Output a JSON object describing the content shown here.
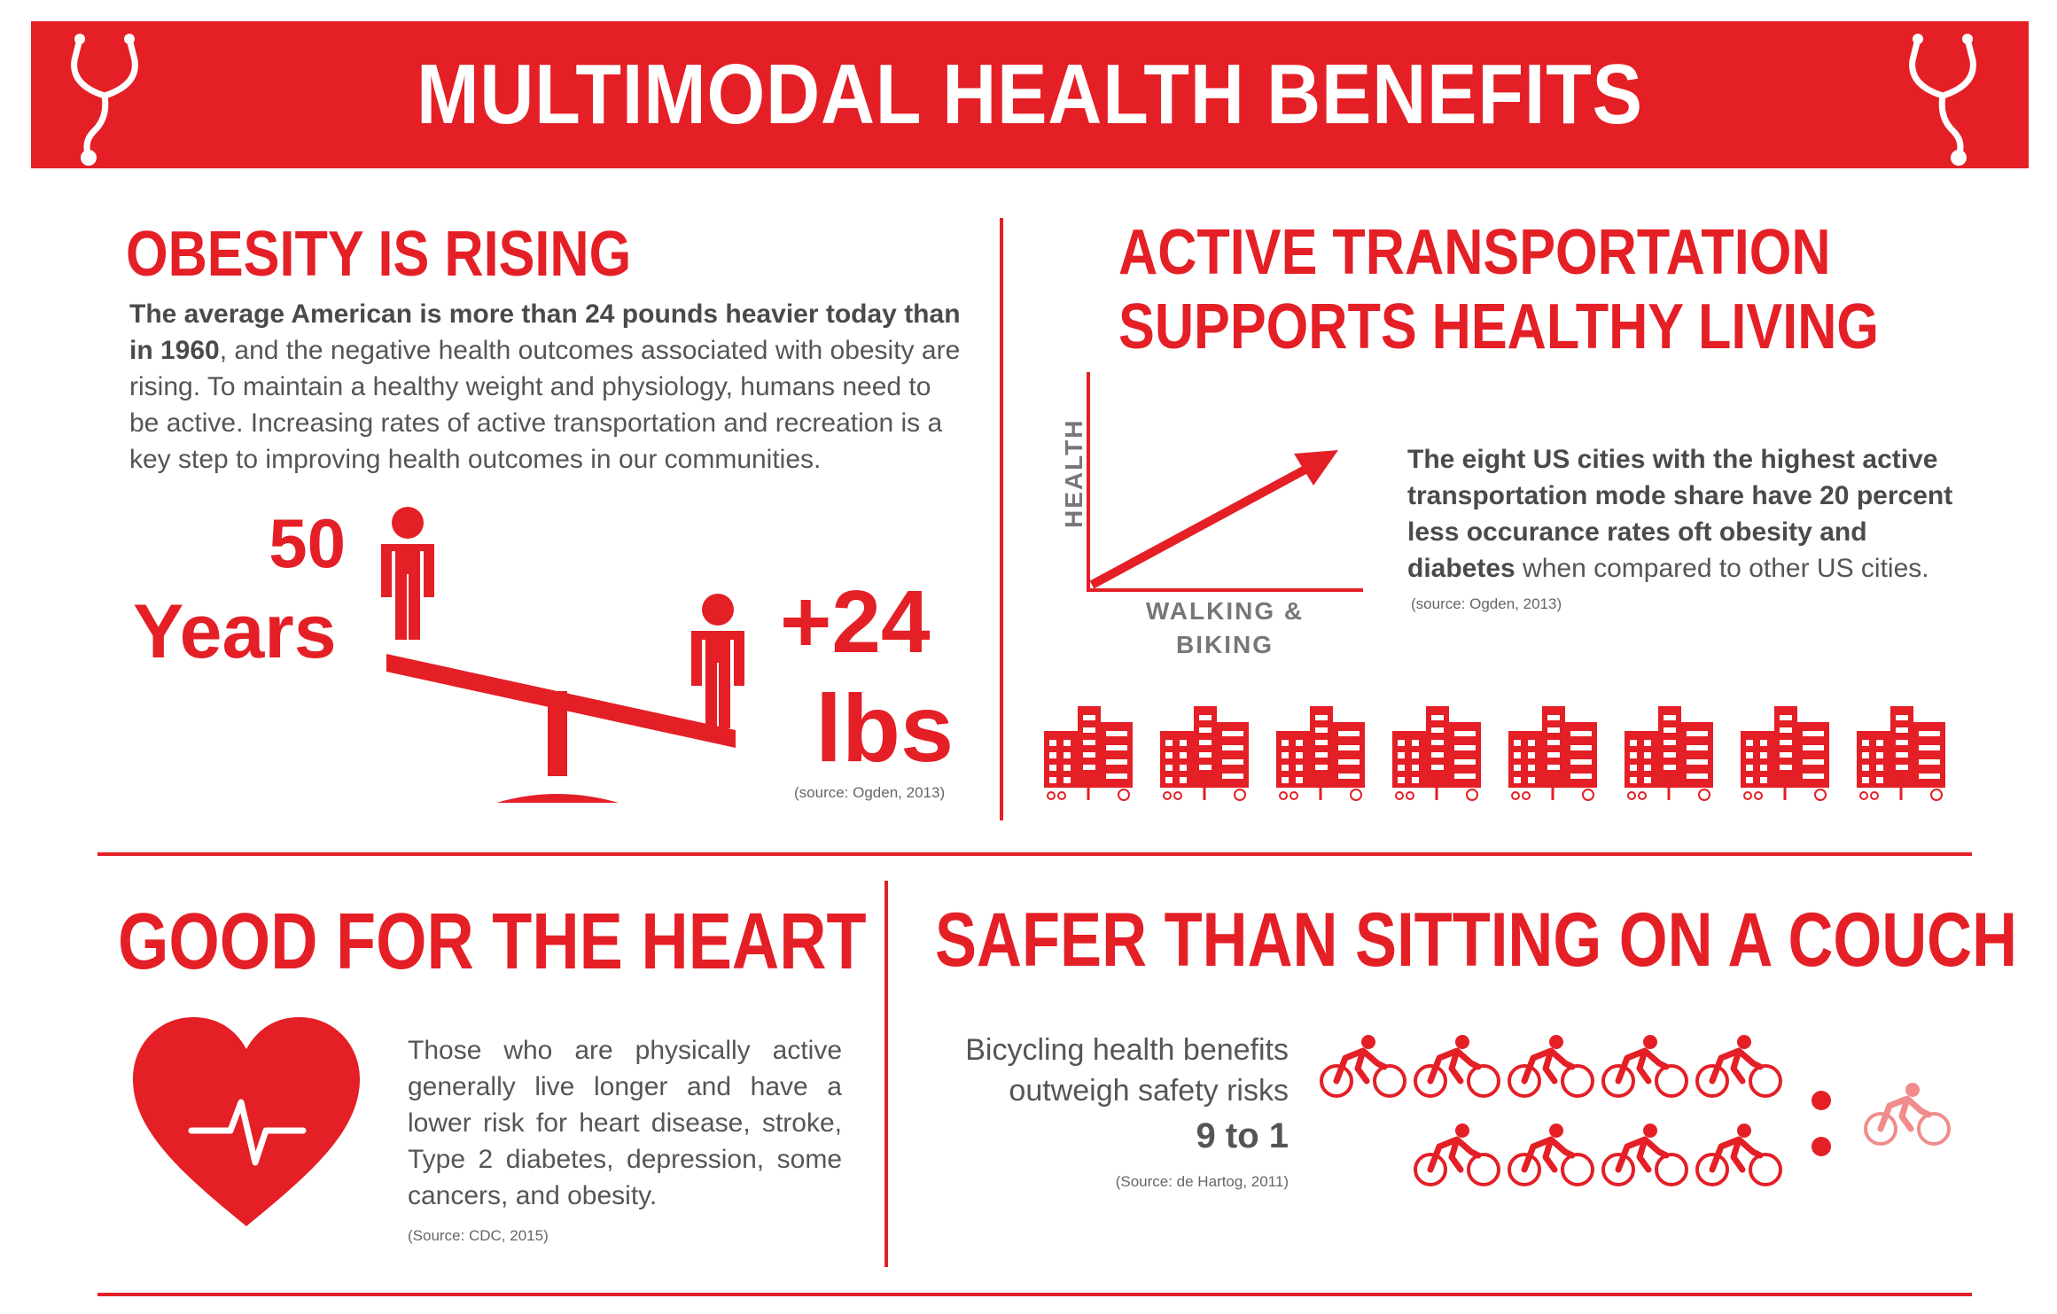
{
  "banner": {
    "title": "MULTIMODAL HEALTH BENEFITS",
    "icon": "stethoscope-icon"
  },
  "colors": {
    "accent": "#e41f26",
    "accent_light": "#f08c8c",
    "text": "#555555"
  },
  "obesity": {
    "heading": "OBESITY IS RISING",
    "body_bold": "The average American is more than 24 pounds heavier today than in 1960",
    "body_rest": ", and the negative health outcomes associated with obesity are rising.  To maintain a healthy weight and physiology, humans need to be active. Increasing rates of active transportation and recreation is a key step to improving health outcomes in our communities.",
    "years_number": "50",
    "years_label": "Years",
    "weight_number": "+24",
    "weight_unit": "lbs",
    "source": "(source: Ogden, 2013)"
  },
  "active": {
    "heading_line1": "ACTIVE TRANSPORTATION",
    "heading_line2": "SUPPORTS HEALTHY LIVING",
    "y_axis_label": "HEALTH",
    "x_axis_label_line1": "WALKING &",
    "x_axis_label_line2": "BIKING",
    "body_bold": "The eight US  cities with the highest active transportation mode share have 20 percent less occurance rates oft obesity and diabetes",
    "body_rest": " when compared to other US cities.",
    "source": "(source: Ogden, 2013)",
    "city_count": 8
  },
  "heart": {
    "heading": "GOOD FOR THE HEART",
    "body": "Those who are physically active generally live longer and have a lower risk for heart disease, stroke, Type 2 diabetes, depression, some cancers, and obesity.",
    "source": "(Source: CDC, 2015)",
    "icon": "heart-pulse-icon"
  },
  "safer": {
    "heading": "SAFER THAN SITTING ON A COUCH",
    "line1": "Bicycling health benefits",
    "line2": "outweigh safety risks",
    "ratio": "9 to 1",
    "source": "(Source: de Hartog, 2011)",
    "benefit_cyclists": 9,
    "risk_cyclists": 1
  }
}
